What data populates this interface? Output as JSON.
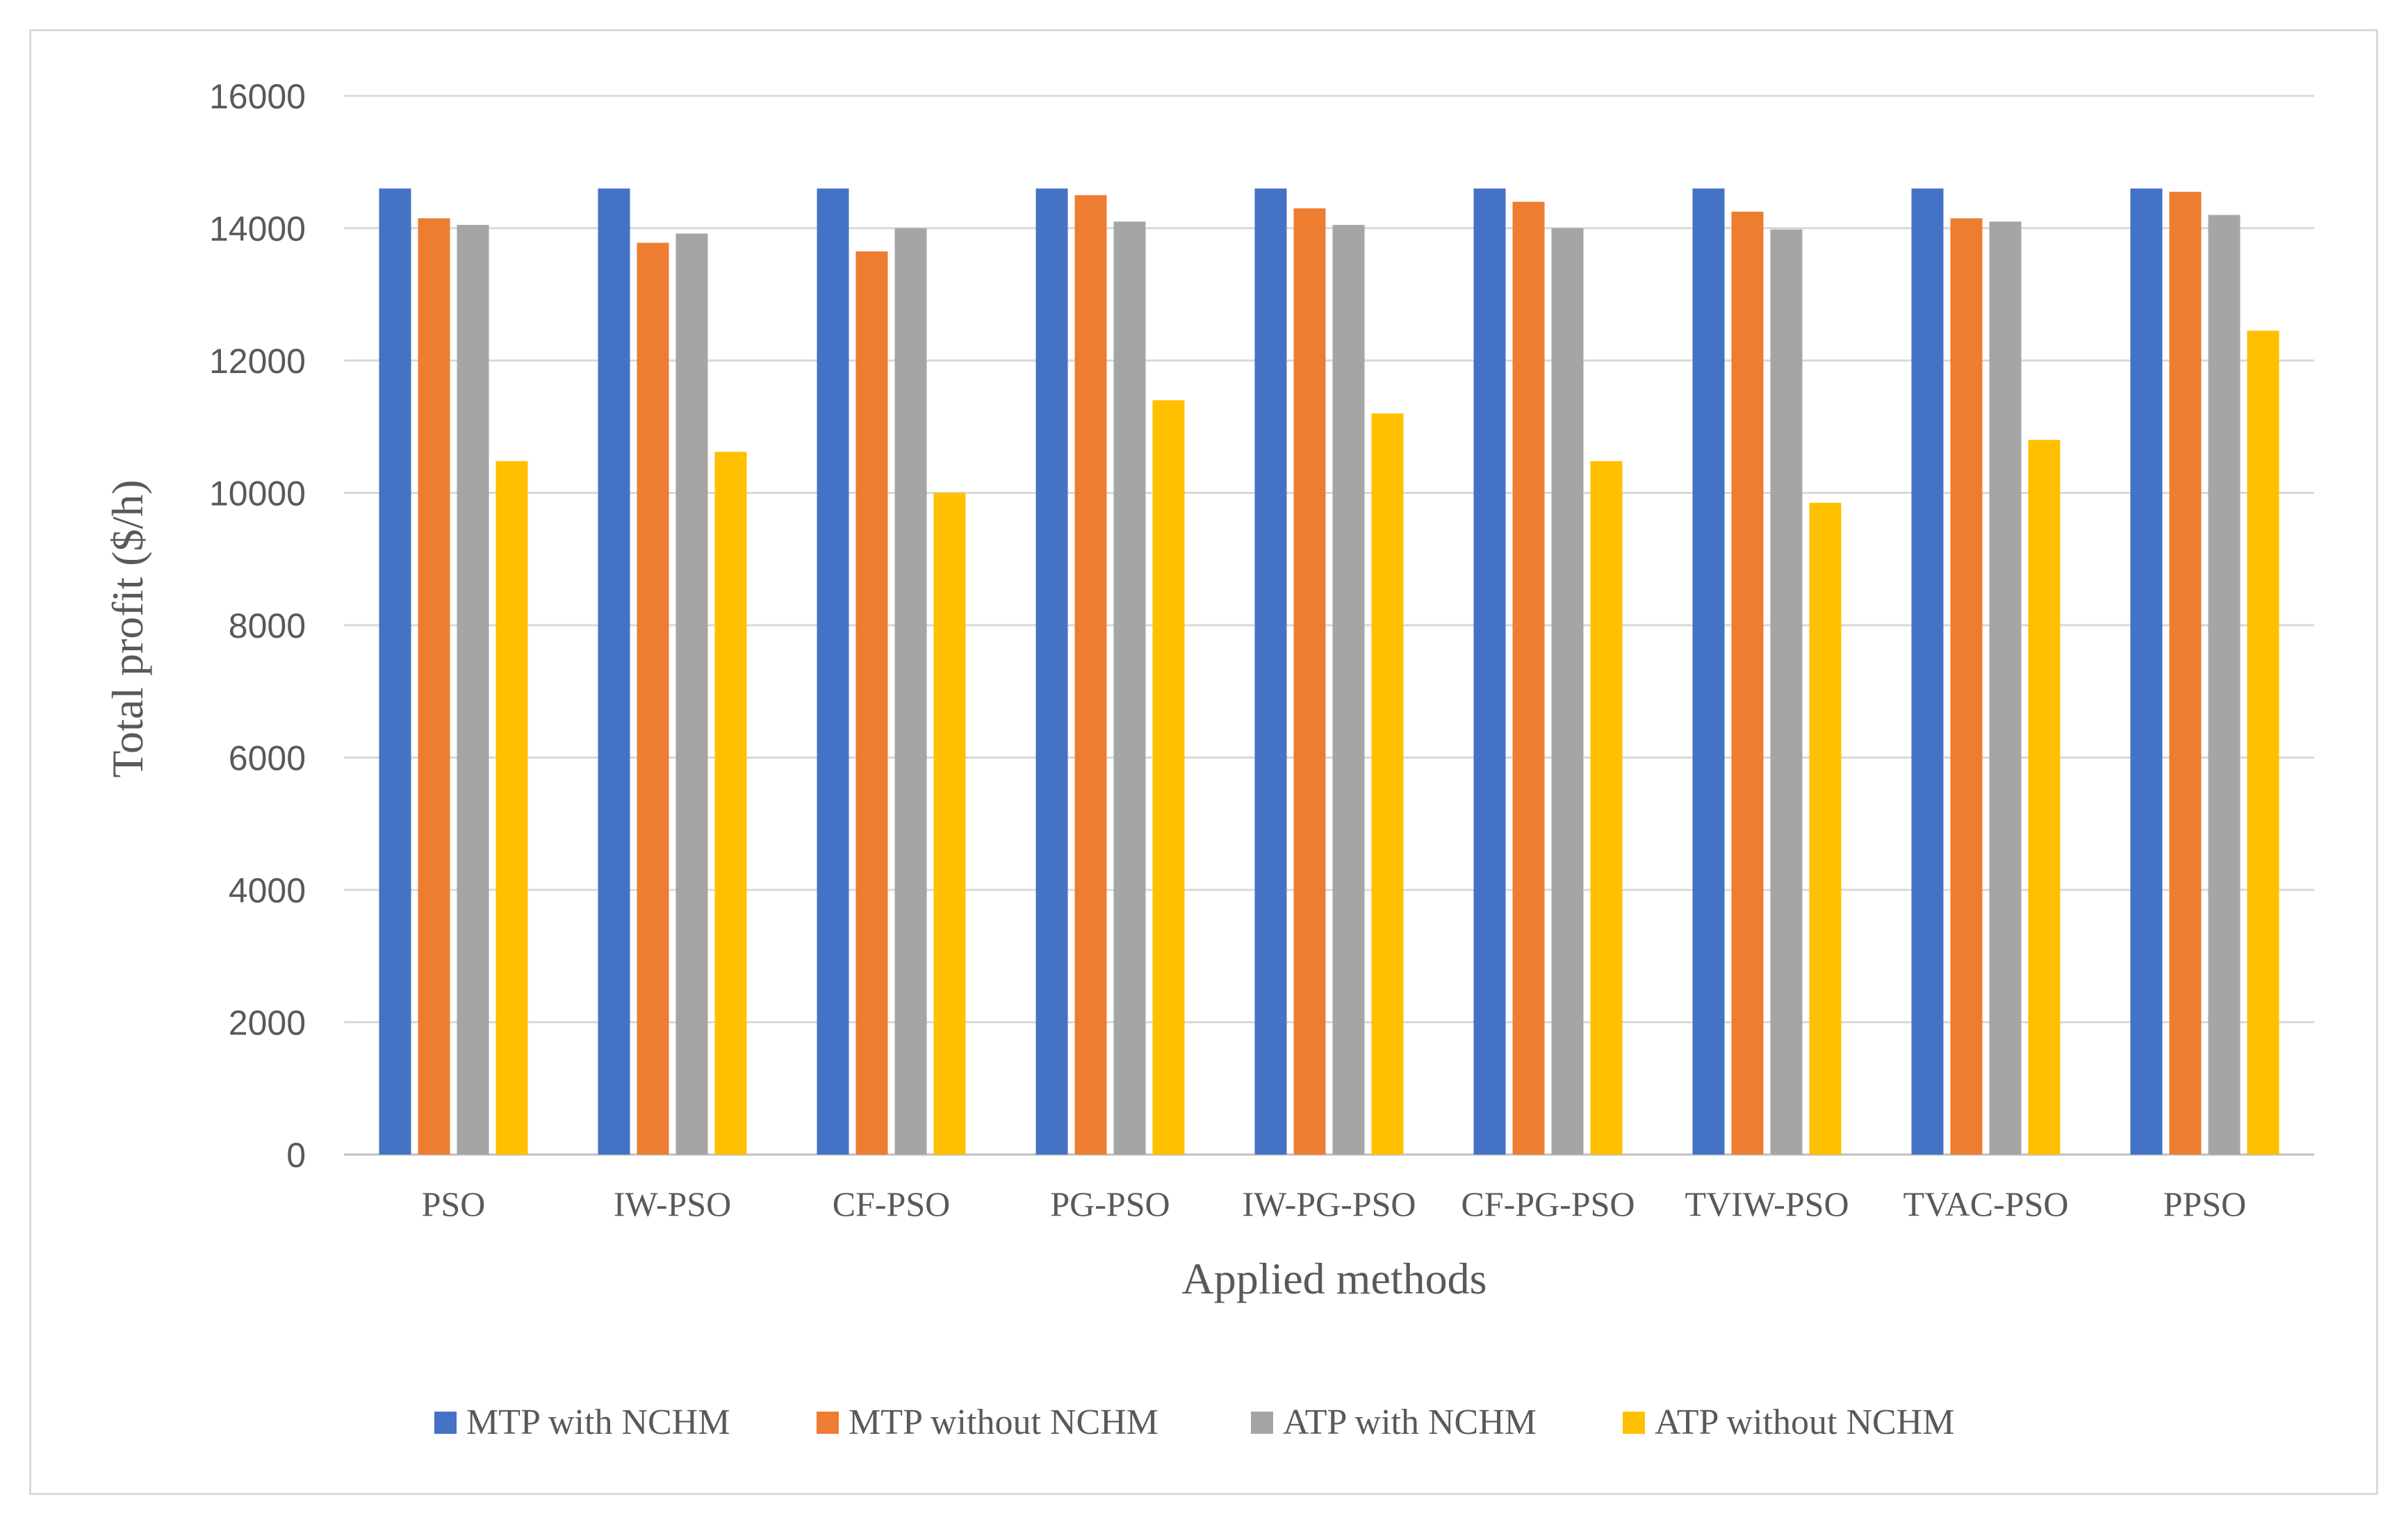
{
  "chart_data": {
    "type": "bar",
    "title": "",
    "xlabel": "Applied methods",
    "ylabel": "Total profit ($/h)",
    "ylim": [
      0,
      16000
    ],
    "yticks": [
      0,
      2000,
      4000,
      6000,
      8000,
      10000,
      12000,
      14000,
      16000
    ],
    "grid": true,
    "legend_position": "bottom",
    "categories": [
      "PSO",
      "IW-PSO",
      "CF-PSO",
      "PG-PSO",
      "IW-PG-PSO",
      "CF-PG-PSO",
      "TVIW-PSO",
      "TVAC-PSO",
      "PPSO"
    ],
    "series": [
      {
        "name": "MTP with NCHM",
        "color": "#4472C4",
        "values": [
          14600,
          14600,
          14600,
          14600,
          14600,
          14600,
          14600,
          14600,
          14600
        ]
      },
      {
        "name": "MTP without NCHM",
        "color": "#ED7D31",
        "values": [
          14150,
          13780,
          13650,
          14500,
          14300,
          14400,
          14250,
          14150,
          14550
        ]
      },
      {
        "name": "ATP with NCHM",
        "color": "#A5A5A5",
        "values": [
          14050,
          13920,
          14000,
          14100,
          14050,
          14000,
          13980,
          14100,
          14200
        ]
      },
      {
        "name": "ATP without NCHM",
        "color": "#FFC000",
        "values": [
          10480,
          10620,
          10000,
          11400,
          11200,
          10480,
          9850,
          10800,
          12450
        ]
      }
    ]
  }
}
